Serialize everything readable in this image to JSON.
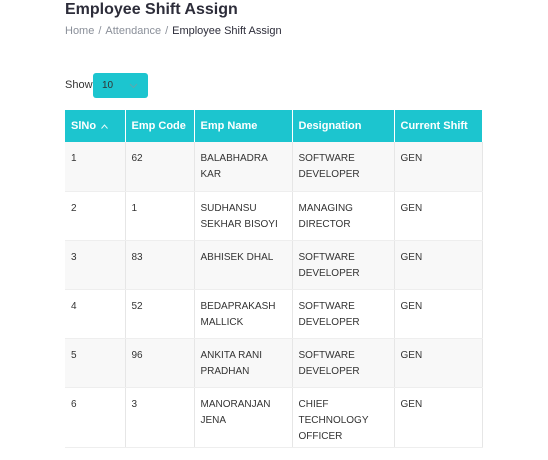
{
  "header": {
    "title": "Employee Shift Assign",
    "breadcrumb": {
      "items": [
        "Home",
        "Attendance",
        "Employee Shift Assign"
      ],
      "separator": "/"
    }
  },
  "length_control": {
    "label": "Show",
    "value": "10"
  },
  "table": {
    "columns": [
      "SlNo",
      "Emp Code",
      "Emp Name",
      "Designation",
      "Current Shift"
    ],
    "rows": [
      [
        "1",
        "62",
        "BALABHADRA KAR",
        "SOFTWARE DEVELOPER",
        "GEN"
      ],
      [
        "2",
        "1",
        "SUDHANSU SEKHAR BISOYI",
        "MANAGING DIRECTOR",
        "GEN"
      ],
      [
        "3",
        "83",
        "ABHISEK DHAL",
        "SOFTWARE DEVELOPER",
        "GEN"
      ],
      [
        "4",
        "52",
        "BEDAPRAKASH MALLICK",
        "SOFTWARE DEVELOPER",
        "GEN"
      ],
      [
        "5",
        "96",
        "ANKITA RANI PRADHAN",
        "SOFTWARE DEVELOPER",
        "GEN"
      ],
      [
        "6",
        "3",
        "MANORANJAN JENA",
        "CHIEF TECHNOLOGY OFFICER",
        "GEN"
      ]
    ]
  }
}
